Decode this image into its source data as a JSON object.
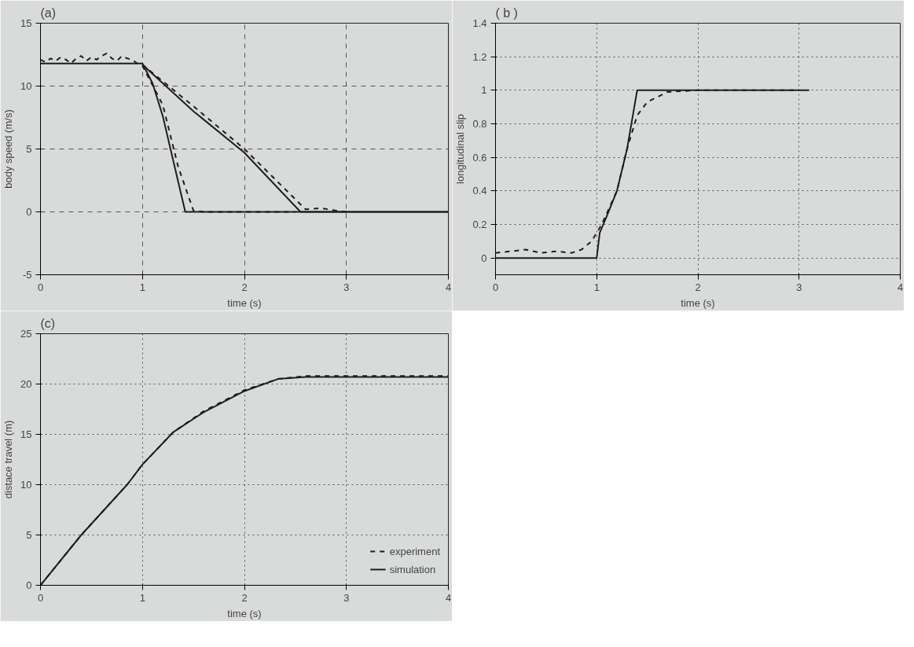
{
  "chart_data": [
    {
      "type": "line",
      "title": "(a)",
      "xlabel": "time (s)",
      "ylabel": "body speed (m/s)",
      "xlim": [
        0,
        4
      ],
      "ylim": [
        -5,
        15
      ],
      "xticks": [
        0,
        1,
        2,
        3,
        4
      ],
      "yticks": [
        -5,
        0,
        5,
        10,
        15
      ],
      "grid": "dashed",
      "series": [
        {
          "color": "#1e1e1e",
          "line_style": "solid",
          "x": [
            0,
            1,
            1.1,
            1.2,
            1.42,
            2,
            3,
            4
          ],
          "values": [
            11.8,
            11.8,
            10.2,
            7.6,
            0,
            0,
            0,
            0
          ]
        },
        {
          "color": "#1e1e1e",
          "line_style": "dashed",
          "x": [
            0,
            0.05,
            0.1,
            0.15,
            0.2,
            0.25,
            0.3,
            0.35,
            0.4,
            0.45,
            0.5,
            0.55,
            0.6,
            0.65,
            0.7,
            0.75,
            0.8,
            0.85,
            0.9,
            0.95,
            1,
            1.2,
            1.35,
            1.5,
            1.6,
            2,
            2.5
          ],
          "values": [
            12.1,
            11.9,
            12.2,
            12.0,
            12.3,
            12.1,
            11.8,
            12.2,
            12.4,
            12.0,
            12.3,
            12.1,
            12.4,
            12.6,
            12.2,
            12.0,
            12.4,
            12.2,
            12.1,
            11.8,
            11.6,
            8.5,
            3.6,
            0.1,
            0,
            0,
            0
          ]
        },
        {
          "color": "#1e1e1e",
          "line_style": "solid",
          "x": [
            1,
            1.5,
            2,
            2.55,
            3,
            4
          ],
          "values": [
            11.7,
            8,
            4.7,
            0,
            0,
            0
          ]
        },
        {
          "color": "#1e1e1e",
          "line_style": "dashed",
          "x": [
            1,
            1.5,
            2,
            2.3,
            2.6,
            2.75,
            2.9,
            3
          ],
          "values": [
            11.7,
            8.4,
            5,
            2.6,
            0.2,
            0.3,
            0.1,
            0
          ]
        }
      ]
    },
    {
      "type": "line",
      "title": "( b )",
      "xlabel": "time (s)",
      "ylabel": "longitudinal slip",
      "xlim": [
        0,
        4
      ],
      "ylim": [
        -0.1,
        1.4
      ],
      "xticks": [
        0,
        1,
        2,
        3,
        4
      ],
      "yticks": [
        0,
        0.2,
        0.4,
        0.6,
        0.8,
        1,
        1.2,
        1.4
      ],
      "grid": "dotted",
      "series": [
        {
          "color": "#1e1e1e",
          "line_style": "solid",
          "x": [
            0,
            1,
            1.03,
            1.1,
            1.2,
            1.3,
            1.4,
            2,
            3.1
          ],
          "values": [
            0,
            0,
            0.15,
            0.25,
            0.4,
            0.65,
            1,
            1,
            1
          ]
        },
        {
          "color": "#1e1e1e",
          "line_style": "dashed",
          "x": [
            0,
            0.15,
            0.3,
            0.45,
            0.6,
            0.75,
            0.85,
            0.95,
            1.05,
            1.2,
            1.3,
            1.4,
            1.5,
            1.7,
            2,
            3
          ],
          "values": [
            0.03,
            0.04,
            0.05,
            0.03,
            0.04,
            0.03,
            0.05,
            0.1,
            0.2,
            0.4,
            0.65,
            0.85,
            0.93,
            0.99,
            1,
            1
          ]
        }
      ]
    },
    {
      "type": "line",
      "title": "(c)",
      "xlabel": "time (s)",
      "ylabel": "distace travel (m)",
      "xlim": [
        0,
        4
      ],
      "ylim": [
        0,
        25
      ],
      "xticks": [
        0,
        1,
        2,
        3,
        4
      ],
      "yticks": [
        0,
        5,
        10,
        15,
        20,
        25
      ],
      "grid": "dotted",
      "legend": "bottom right",
      "series": [
        {
          "name": "experiment",
          "color": "#1e1e1e",
          "line_style": "dashed",
          "x": [
            0,
            0.4,
            0.85,
            1,
            1.3,
            1.6,
            2,
            2.33,
            2.6,
            3,
            4
          ],
          "values": [
            0,
            5,
            10,
            12,
            15.2,
            17.3,
            19.4,
            20.5,
            20.8,
            20.8,
            20.8
          ]
        },
        {
          "name": "simulation",
          "color": "#1e1e1e",
          "line_style": "solid",
          "x": [
            0,
            0.4,
            0.85,
            1,
            1.3,
            1.6,
            2,
            2.33,
            2.6,
            3,
            4
          ],
          "values": [
            0,
            5,
            10,
            12,
            15.2,
            17.2,
            19.3,
            20.5,
            20.7,
            20.7,
            20.7
          ]
        }
      ]
    }
  ]
}
